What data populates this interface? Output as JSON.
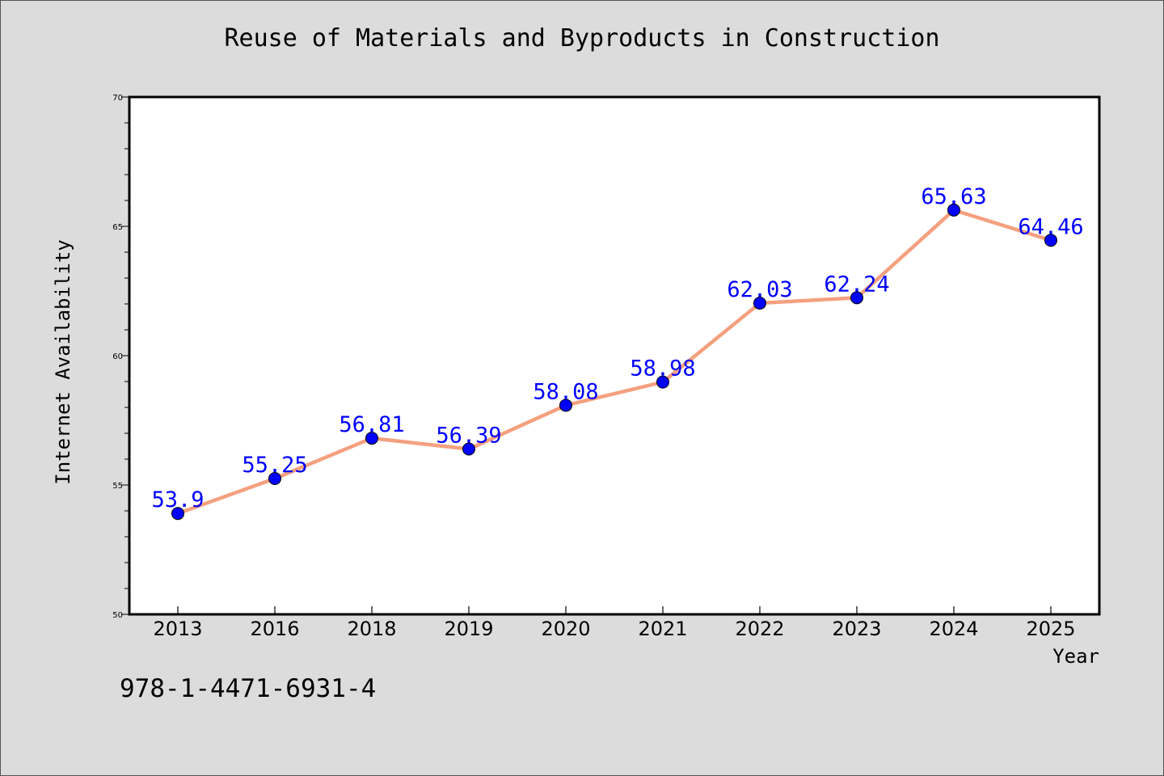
{
  "chart_data": {
    "type": "line",
    "title": "Reuse of Materials and Byproducts in Construction",
    "xlabel": "Year",
    "ylabel": "Internet Availability",
    "categories": [
      "2013",
      "2016",
      "2018",
      "2019",
      "2020",
      "2021",
      "2022",
      "2023",
      "2024",
      "2025"
    ],
    "series": [
      {
        "values": [
          53.9,
          55.25,
          56.81,
          56.39,
          58.08,
          58.98,
          62.03,
          62.24,
          65.63,
          64.46
        ],
        "data_labels": [
          "53.9",
          "55.25",
          "56.81",
          "56.39",
          "58.08",
          "58.98",
          "62.03",
          "62.24",
          "65.63",
          "64.46"
        ]
      }
    ],
    "ylim": [
      50,
      70
    ],
    "yticks": [
      "50",
      "55",
      "60",
      "65",
      "70"
    ],
    "grid": false,
    "legend": "none",
    "colors": {
      "line": "#f4a07f",
      "marker": "#0000ff",
      "data_label": "#0000ff",
      "plot_background": "#ffffff",
      "figure_background": "#dcdcdc"
    }
  },
  "footer": {
    "code": "978-1-4471-6931-4"
  }
}
